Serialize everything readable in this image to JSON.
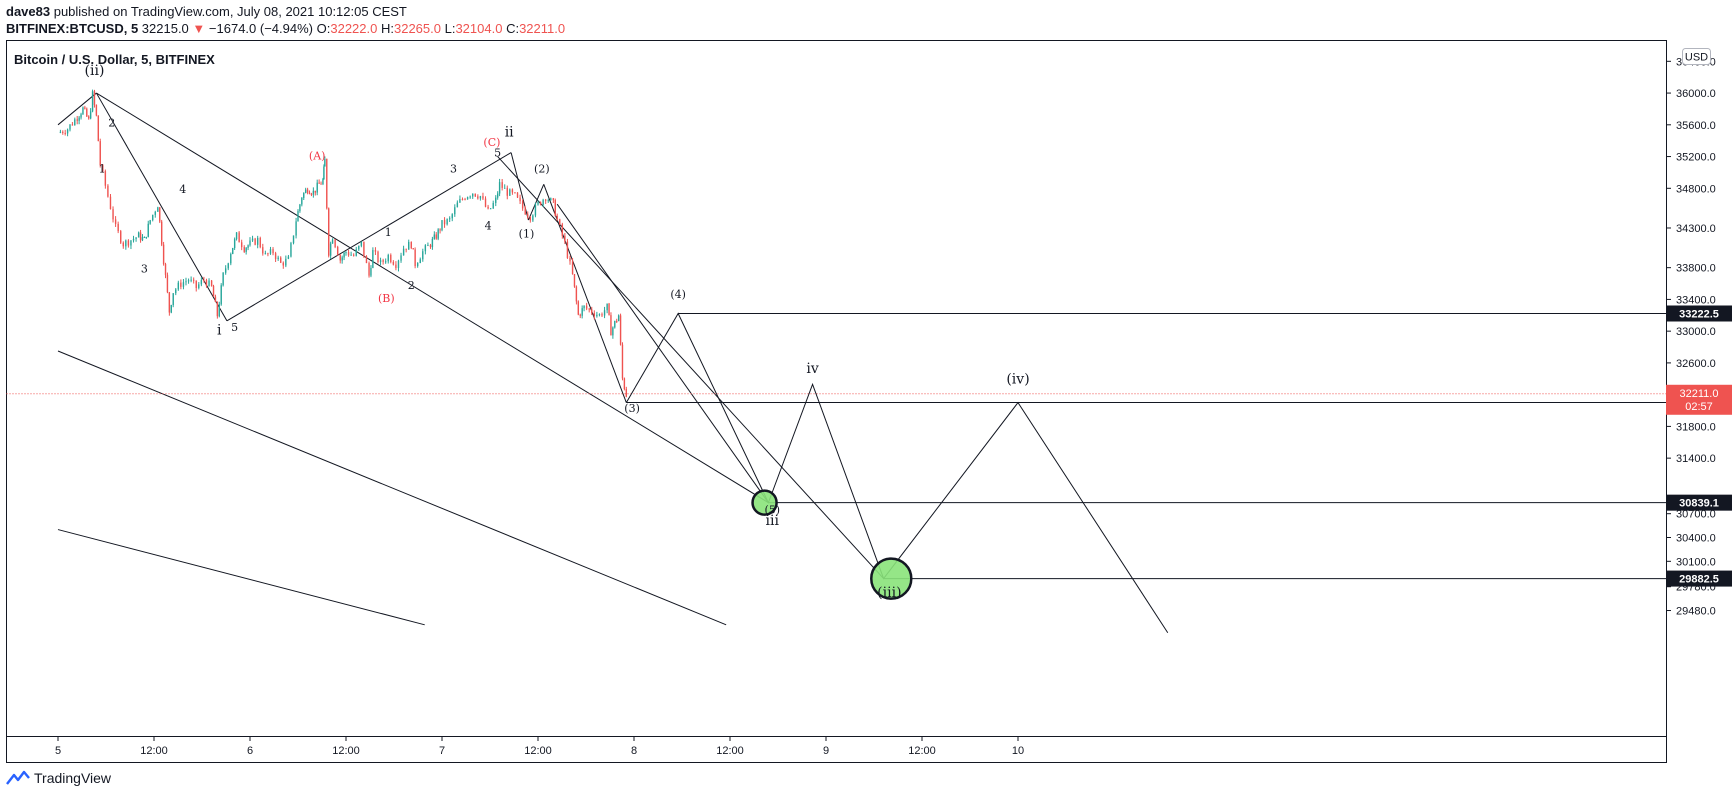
{
  "header": {
    "user": "dave83",
    "published_text": "published on TradingView.com, July 08, 2021 10:12:05 CEST",
    "symbol": "BITFINEX:BTCUSD, 5",
    "price": "32215.0",
    "down_arrow": "▼",
    "change": "−1674.0 (−4.94%)",
    "o_label": "O:",
    "o_value": "32222.0",
    "h_label": "H:",
    "h_value": "32265.0",
    "l_label": "L:",
    "l_value": "32104.0",
    "c_label": "C:",
    "c_value": "32211.0"
  },
  "pane_title": "Bitcoin / U.S. Dollar, 5, BITFINEX",
  "currency_badge": "USD",
  "footer": {
    "brand": "TradingView"
  },
  "colors": {
    "up": "#26a69a",
    "down": "#ef5350",
    "line": "#131722",
    "label_red": "#f23645",
    "highlight": "#8ae37a",
    "price_tag": "#131722",
    "last_price_tag": "#ef5350",
    "last_price_line": "#ef5350"
  },
  "chart_data": {
    "type": "candlestick",
    "title": "Bitcoin / U.S. Dollar, 5, BITFINEX",
    "x_ticks": [
      "5",
      "12:00",
      "6",
      "12:00",
      "7",
      "12:00",
      "8",
      "12:00",
      "9",
      "12:00",
      "10"
    ],
    "y_ticks": [
      "36400.0",
      "36000.0",
      "35600.0",
      "35200.0",
      "34800.0",
      "34300.0",
      "33800.0",
      "33400.0",
      "33000.0",
      "32600.0",
      "31800.0",
      "31400.0",
      "30700.0",
      "30400.0",
      "30100.0",
      "29780.0",
      "29480.0"
    ],
    "ylim": [
      29300,
      36500
    ],
    "price_path": [
      [
        0.0,
        35500
      ],
      [
        0.05,
        35550
      ],
      [
        0.1,
        35700
      ],
      [
        0.13,
        35800
      ],
      [
        0.16,
        35650
      ],
      [
        0.18,
        35980
      ],
      [
        0.2,
        35700
      ],
      [
        0.22,
        35100
      ],
      [
        0.26,
        34700
      ],
      [
        0.3,
        34300
      ],
      [
        0.34,
        34100
      ],
      [
        0.38,
        34150
      ],
      [
        0.42,
        34200
      ],
      [
        0.45,
        34150
      ],
      [
        0.48,
        34400
      ],
      [
        0.52,
        34600
      ],
      [
        0.55,
        33900
      ],
      [
        0.58,
        33250
      ],
      [
        0.6,
        33500
      ],
      [
        0.64,
        33600
      ],
      [
        0.68,
        33650
      ],
      [
        0.72,
        33550
      ],
      [
        0.76,
        33650
      ],
      [
        0.8,
        33550
      ],
      [
        0.83,
        33200
      ],
      [
        0.86,
        33700
      ],
      [
        0.9,
        34000
      ],
      [
        0.93,
        34200
      ],
      [
        0.97,
        34050
      ],
      [
        1.0,
        34100
      ],
      [
        1.04,
        34150
      ],
      [
        1.08,
        33950
      ],
      [
        1.12,
        34000
      ],
      [
        1.16,
        33850
      ],
      [
        1.2,
        33900
      ],
      [
        1.24,
        34400
      ],
      [
        1.27,
        34700
      ],
      [
        1.3,
        34800
      ],
      [
        1.33,
        34750
      ],
      [
        1.36,
        34850
      ],
      [
        1.38,
        34900
      ],
      [
        1.39,
        35150
      ],
      [
        1.41,
        34000
      ],
      [
        1.43,
        34200
      ],
      [
        1.47,
        33900
      ],
      [
        1.5,
        34000
      ],
      [
        1.54,
        33950
      ],
      [
        1.58,
        34100
      ],
      [
        1.62,
        33700
      ],
      [
        1.64,
        34000
      ],
      [
        1.68,
        33850
      ],
      [
        1.72,
        33950
      ],
      [
        1.76,
        33850
      ],
      [
        1.8,
        34050
      ],
      [
        1.84,
        34100
      ],
      [
        1.86,
        33850
      ],
      [
        1.9,
        34000
      ],
      [
        1.94,
        34100
      ],
      [
        1.97,
        34200
      ],
      [
        2.0,
        34350
      ],
      [
        2.04,
        34400
      ],
      [
        2.08,
        34600
      ],
      [
        2.12,
        34700
      ],
      [
        2.16,
        34750
      ],
      [
        2.2,
        34700
      ],
      [
        2.24,
        34500
      ],
      [
        2.28,
        34650
      ],
      [
        2.3,
        34850
      ],
      [
        2.34,
        34750
      ],
      [
        2.38,
        34700
      ],
      [
        2.42,
        34550
      ],
      [
        2.46,
        34450
      ],
      [
        2.5,
        34600
      ],
      [
        2.54,
        34700
      ],
      [
        2.58,
        34600
      ],
      [
        2.6,
        34400
      ],
      [
        2.64,
        34100
      ],
      [
        2.68,
        33700
      ],
      [
        2.71,
        33200
      ],
      [
        2.74,
        33300
      ],
      [
        2.78,
        33250
      ],
      [
        2.82,
        33200
      ],
      [
        2.86,
        33300
      ],
      [
        2.88,
        33000
      ],
      [
        2.9,
        33100
      ],
      [
        2.92,
        33200
      ],
      [
        2.94,
        32400
      ],
      [
        2.96,
        32200
      ]
    ],
    "price_lines": [
      {
        "value": "33222.5",
        "price": 33222.5
      },
      {
        "value": "32100.3",
        "price": 32100.3
      },
      {
        "value": "30839.1",
        "price": 30839.1
      },
      {
        "value": "29882.5",
        "price": 29882.5
      }
    ],
    "last_price": {
      "value": "32211.0",
      "countdown": "02:57",
      "price": 32211.0
    },
    "wave_labels": [
      {
        "text": "(ii)",
        "x": 0.19,
        "p": 36230,
        "size": 14,
        "color": "line"
      },
      {
        "text": "2",
        "x": 0.28,
        "p": 35580,
        "size": 11,
        "color": "line"
      },
      {
        "text": "1",
        "x": 0.23,
        "p": 35000,
        "size": 11,
        "color": "line"
      },
      {
        "text": "3",
        "x": 0.45,
        "p": 33740,
        "size": 11,
        "color": "line"
      },
      {
        "text": "4",
        "x": 0.65,
        "p": 34740,
        "size": 11,
        "color": "line"
      },
      {
        "text": "i",
        "x": 0.84,
        "p": 32960,
        "size": 14,
        "color": "line"
      },
      {
        "text": "5",
        "x": 0.92,
        "p": 33000,
        "size": 11,
        "color": "line"
      },
      {
        "text": "(A)",
        "x": 1.35,
        "p": 35160,
        "size": 11,
        "color": "red"
      },
      {
        "text": "1",
        "x": 1.72,
        "p": 34200,
        "size": 11,
        "color": "line"
      },
      {
        "text": "(B)",
        "x": 1.71,
        "p": 33370,
        "size": 11,
        "color": "red"
      },
      {
        "text": "2",
        "x": 1.84,
        "p": 33530,
        "size": 11,
        "color": "line"
      },
      {
        "text": "3",
        "x": 2.06,
        "p": 35000,
        "size": 11,
        "color": "line"
      },
      {
        "text": "(C)",
        "x": 2.26,
        "p": 35330,
        "size": 11,
        "color": "red"
      },
      {
        "text": "ii",
        "x": 2.35,
        "p": 35450,
        "size": 14,
        "color": "line"
      },
      {
        "text": "5",
        "x": 2.29,
        "p": 35200,
        "size": 11,
        "color": "line"
      },
      {
        "text": "4",
        "x": 2.24,
        "p": 34280,
        "size": 11,
        "color": "line"
      },
      {
        "text": "(2)",
        "x": 2.52,
        "p": 35000,
        "size": 11,
        "color": "line"
      },
      {
        "text": "(1)",
        "x": 2.44,
        "p": 34180,
        "size": 11,
        "color": "line"
      },
      {
        "text": "(4)",
        "x": 3.23,
        "p": 33420,
        "size": 11,
        "color": "line"
      },
      {
        "text": "(3)",
        "x": 2.99,
        "p": 31980,
        "size": 11,
        "color": "line"
      },
      {
        "text": "iv",
        "x": 3.93,
        "p": 32470,
        "size": 14,
        "color": "line"
      },
      {
        "text": "(iv)",
        "x": 5.0,
        "p": 32340,
        "size": 14,
        "color": "line"
      },
      {
        "text": "(5)",
        "x": 3.72,
        "p": 30700,
        "size": 11,
        "color": "line"
      },
      {
        "text": "iii",
        "x": 3.72,
        "p": 30560,
        "size": 14,
        "color": "line"
      },
      {
        "text": "(iii)",
        "x": 4.33,
        "p": 29650,
        "size": 14,
        "color": "line"
      }
    ],
    "wave_path": [
      [
        2.96,
        32100
      ],
      [
        3.23,
        33222.5
      ],
      [
        3.7,
        30839.1
      ],
      [
        3.93,
        32330
      ],
      [
        4.3,
        29882.5
      ],
      [
        5.0,
        32100.3
      ],
      [
        5.78,
        29200
      ]
    ],
    "channels": [
      {
        "from": [
          0.0,
          35600
        ],
        "to": [
          0.2,
          36000
        ]
      },
      {
        "from": [
          0.2,
          36000
        ],
        "to": [
          3.7,
          30839.1
        ]
      },
      {
        "from": [
          0.2,
          36000
        ],
        "to": [
          0.88,
          33130
        ]
      },
      {
        "from": [
          0.88,
          33130
        ],
        "to": [
          2.36,
          35250
        ]
      },
      {
        "from": [
          2.29,
          35200
        ],
        "to": [
          4.3,
          29882.5
        ]
      },
      {
        "from": [
          2.36,
          35250
        ],
        "to": [
          2.45,
          34400
        ]
      },
      {
        "from": [
          2.45,
          34400
        ],
        "to": [
          2.53,
          34850
        ]
      },
      {
        "from": [
          2.53,
          34850
        ],
        "to": [
          2.96,
          32100
        ]
      },
      {
        "from": [
          2.6,
          34600
        ],
        "to": [
          3.7,
          30839.1
        ]
      },
      {
        "from": [
          0.0,
          32750
        ],
        "to": [
          3.48,
          29300
        ]
      },
      {
        "from": [
          0.0,
          30500
        ],
        "to": [
          1.91,
          29300
        ]
      }
    ],
    "highlights": [
      {
        "x": 3.68,
        "p": 30839.1,
        "r": 12
      },
      {
        "x": 4.34,
        "p": 29882.5,
        "r": 20
      }
    ]
  }
}
